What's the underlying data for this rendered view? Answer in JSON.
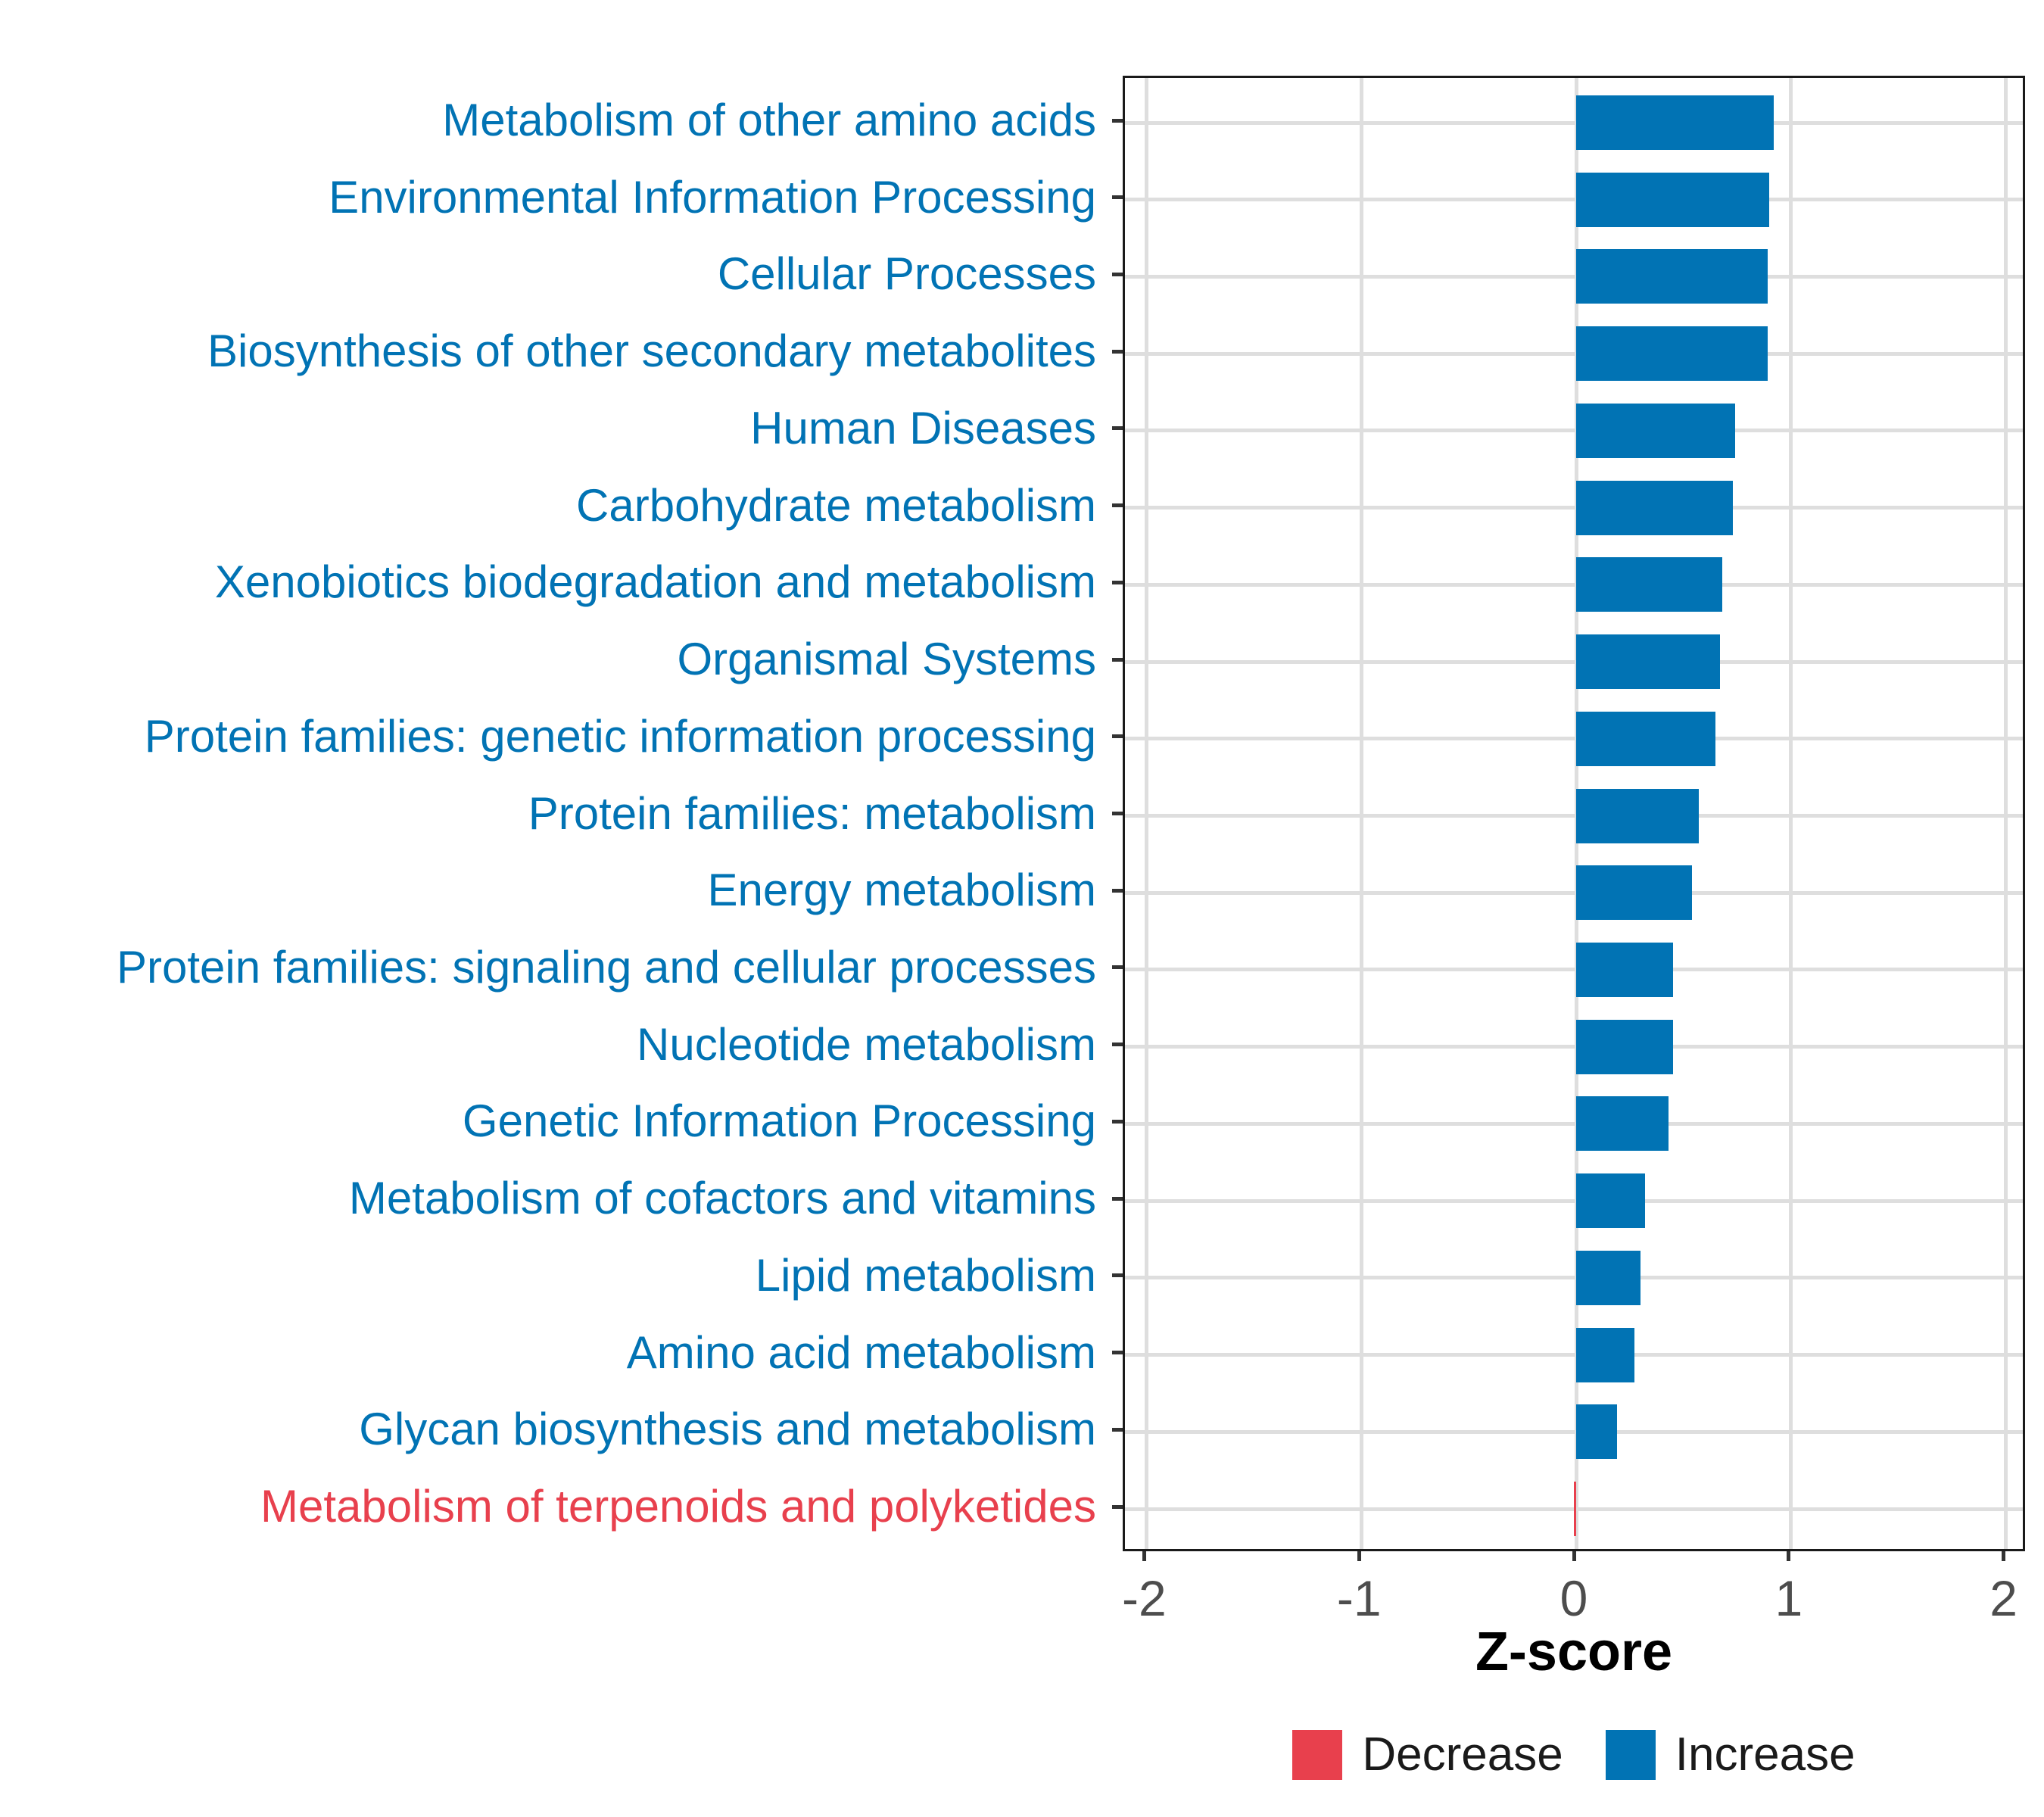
{
  "chart_data": {
    "type": "bar",
    "orientation": "horizontal",
    "xlabel": "Z-score",
    "xlim": [
      -2.1,
      2.1
    ],
    "x_ticks": [
      -2,
      -1,
      0,
      1,
      2
    ],
    "x_tick_labels": [
      "-2",
      "-1",
      "0",
      "1",
      "2"
    ],
    "grid": true,
    "legend_position": "bottom",
    "categories": [
      "Metabolism of other amino acids",
      "Environmental Information Processing",
      "Cellular Processes",
      "Biosynthesis of other secondary metabolites",
      "Human Diseases",
      "Carbohydrate metabolism",
      "Xenobiotics biodegradation and metabolism",
      "Organismal Systems",
      "Protein families: genetic information processing",
      "Protein families: metabolism",
      "Energy metabolism",
      "Protein families: signaling and cellular processes",
      "Nucleotide metabolism",
      "Genetic Information Processing",
      "Metabolism of cofactors and vitamins",
      "Lipid metabolism",
      "Amino acid metabolism",
      "Glycan biosynthesis and metabolism",
      "Metabolism of terpenoids and polyketides"
    ],
    "values": [
      0.92,
      0.9,
      0.89,
      0.89,
      0.74,
      0.73,
      0.68,
      0.67,
      0.65,
      0.57,
      0.54,
      0.45,
      0.45,
      0.43,
      0.32,
      0.3,
      0.27,
      0.19,
      -0.01
    ],
    "directions": [
      "Increase",
      "Increase",
      "Increase",
      "Increase",
      "Increase",
      "Increase",
      "Increase",
      "Increase",
      "Increase",
      "Increase",
      "Increase",
      "Increase",
      "Increase",
      "Increase",
      "Increase",
      "Increase",
      "Increase",
      "Increase",
      "Decrease"
    ],
    "legend": {
      "items": [
        {
          "label": "Decrease",
          "color": "#E8404D"
        },
        {
          "label": "Increase",
          "color": "#0173B4"
        }
      ]
    }
  },
  "colors": {
    "increase": "#0173B4",
    "decrease": "#E8404D",
    "grid": "#DEDEDE",
    "panel_border": "#1A1A1A",
    "tick_text": "#4D4D4D",
    "background": "#FFFFFF"
  }
}
